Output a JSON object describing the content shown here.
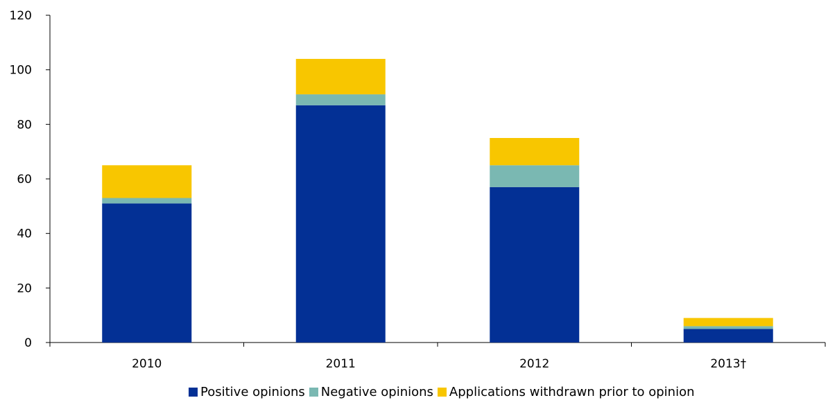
{
  "chart_data": {
    "type": "bar",
    "stacked": true,
    "categories": [
      "2010",
      "2011",
      "2012",
      "2013†"
    ],
    "series": [
      {
        "name": "Positive opinions",
        "color": "#033095",
        "values": [
          51,
          87,
          57,
          5
        ]
      },
      {
        "name": "Negative opinions",
        "color": "#7ab8b2",
        "values": [
          2,
          4,
          8,
          1
        ]
      },
      {
        "name": "Applications withdrawn prior to opinion",
        "color": "#f8c600",
        "values": [
          12,
          13,
          10,
          3
        ]
      }
    ],
    "ylim": [
      0,
      120
    ],
    "yticks": [
      0,
      20,
      40,
      60,
      80,
      100,
      120
    ],
    "title": "",
    "xlabel": "",
    "ylabel": "",
    "grid": false,
    "legend_position": "bottom"
  }
}
